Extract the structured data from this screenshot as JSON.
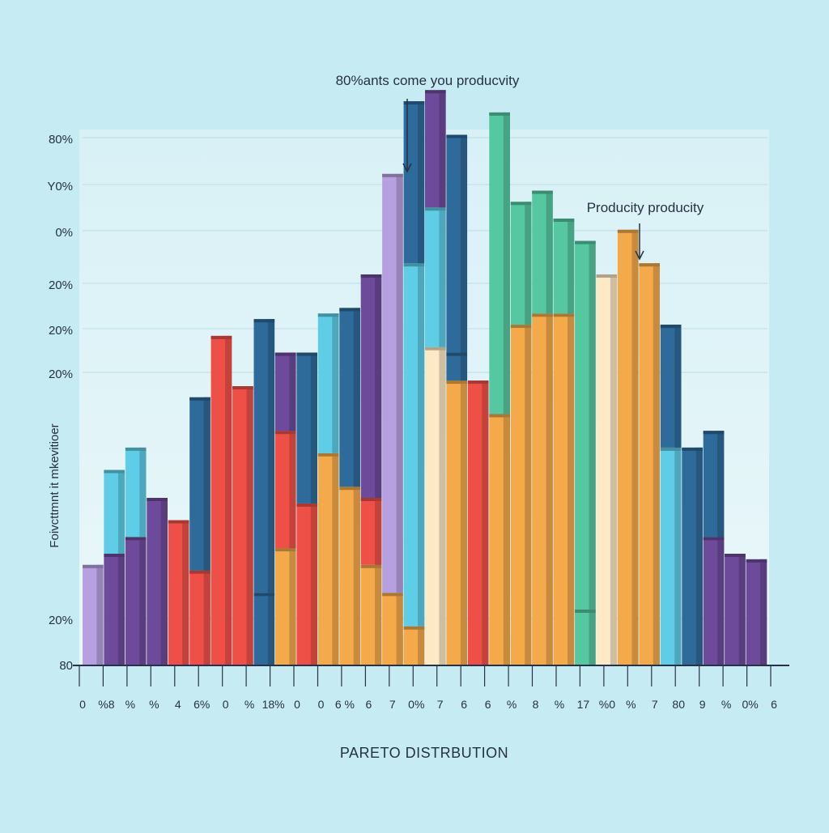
{
  "chart_data": {
    "type": "bar",
    "title": "PARETO DISTRBUTION",
    "ylabel": "Foivcttmnt it mkevitioer",
    "yticks": [
      "80%",
      "Y0%",
      "0%",
      "20%",
      "20%",
      "20%",
      "20%",
      "80"
    ],
    "xticks": [
      "0",
      "%8",
      "%",
      "%",
      "4",
      "6%",
      "0",
      "%",
      "18%",
      "0",
      "0",
      "6 %",
      "6",
      "7",
      "0%",
      "7",
      "6",
      "6",
      "%",
      "8",
      "%",
      "17",
      "%0",
      "%",
      "7",
      "80",
      "9",
      "%",
      "0%",
      "6"
    ],
    "annotations": [
      {
        "text": "80%ants come you producvity"
      },
      {
        "text": "Producity producity"
      }
    ],
    "colors": {
      "background": "#c6ebf2",
      "lavender": "#b7a0e0",
      "purple": "#6e4a9b",
      "cyan": "#5fcde6",
      "navy": "#2e6a9a",
      "red": "#ee5048",
      "orange": "#f4aa4a",
      "cream": "#fde9c5",
      "green": "#55c8a2",
      "blue": "#3a8fc4"
    },
    "series_note": "stacked colored bars, values read as fraction of plot height",
    "bars": [
      {
        "segments": [
          {
            "value": 0.18,
            "color": "lavender"
          }
        ]
      },
      {
        "segments": [
          {
            "value": 0.2,
            "color": "purple"
          },
          {
            "value": 0.15,
            "color": "cyan"
          }
        ]
      },
      {
        "segments": [
          {
            "value": 0.23,
            "color": "purple"
          },
          {
            "value": 0.16,
            "color": "cyan"
          }
        ]
      },
      {
        "segments": [
          {
            "value": 0.3,
            "color": "purple"
          }
        ]
      },
      {
        "segments": [
          {
            "value": 0.26,
            "color": "red"
          }
        ]
      },
      {
        "segments": [
          {
            "value": 0.17,
            "color": "red"
          },
          {
            "value": 0.31,
            "color": "navy"
          }
        ]
      },
      {
        "segments": [
          {
            "value": 0.59,
            "color": "red"
          }
        ]
      },
      {
        "segments": [
          {
            "value": 0.5,
            "color": "red"
          }
        ]
      },
      {
        "segments": [
          {
            "value": 0.13,
            "color": "navy"
          },
          {
            "value": 0.49,
            "color": "navy"
          }
        ]
      },
      {
        "segments": [
          {
            "value": 0.21,
            "color": "orange"
          },
          {
            "value": 0.21,
            "color": "red"
          },
          {
            "value": 0.14,
            "color": "purple"
          }
        ]
      },
      {
        "segments": [
          {
            "value": 0.29,
            "color": "red"
          },
          {
            "value": 0.27,
            "color": "navy"
          }
        ]
      },
      {
        "segments": [
          {
            "value": 0.38,
            "color": "orange"
          },
          {
            "value": 0.25,
            "color": "cyan"
          }
        ]
      },
      {
        "segments": [
          {
            "value": 0.32,
            "color": "orange"
          },
          {
            "value": 0.32,
            "color": "navy"
          }
        ]
      },
      {
        "segments": [
          {
            "value": 0.18,
            "color": "orange"
          },
          {
            "value": 0.12,
            "color": "red"
          },
          {
            "value": 0.4,
            "color": "purple"
          }
        ]
      },
      {
        "segments": [
          {
            "value": 0.13,
            "color": "orange"
          },
          {
            "value": 0.75,
            "color": "lavender"
          }
        ]
      },
      {
        "segments": [
          {
            "value": 0.07,
            "color": "orange"
          },
          {
            "value": 0.65,
            "color": "cyan"
          },
          {
            "value": 0.29,
            "color": "navy"
          }
        ]
      },
      {
        "segments": [
          {
            "value": 0.57,
            "color": "cream"
          },
          {
            "value": 0.25,
            "color": "cyan"
          },
          {
            "value": 0.21,
            "color": "purple"
          }
        ]
      },
      {
        "segments": [
          {
            "value": 0.51,
            "color": "orange"
          },
          {
            "value": 0.05,
            "color": "navy"
          },
          {
            "value": 0.39,
            "color": "navy"
          }
        ]
      },
      {
        "segments": [
          {
            "value": 0.51,
            "color": "red"
          }
        ]
      },
      {
        "segments": [
          {
            "value": 0.45,
            "color": "orange"
          },
          {
            "value": 0.54,
            "color": "green"
          }
        ]
      },
      {
        "segments": [
          {
            "value": 0.61,
            "color": "orange"
          },
          {
            "value": 0.22,
            "color": "green"
          }
        ]
      },
      {
        "segments": [
          {
            "value": 0.63,
            "color": "orange"
          },
          {
            "value": 0.22,
            "color": "green"
          }
        ]
      },
      {
        "segments": [
          {
            "value": 0.63,
            "color": "orange"
          },
          {
            "value": 0.17,
            "color": "green"
          }
        ]
      },
      {
        "segments": [
          {
            "value": 0.1,
            "color": "green"
          },
          {
            "value": 0.66,
            "color": "green"
          }
        ]
      },
      {
        "segments": [
          {
            "value": 0.7,
            "color": "cream"
          }
        ]
      },
      {
        "segments": [
          {
            "value": 0.78,
            "color": "orange"
          }
        ]
      },
      {
        "segments": [
          {
            "value": 0.72,
            "color": "orange"
          }
        ]
      },
      {
        "segments": [
          {
            "value": 0.39,
            "color": "cyan"
          },
          {
            "value": 0.22,
            "color": "navy"
          }
        ]
      },
      {
        "segments": [
          {
            "value": 0.39,
            "color": "navy"
          }
        ]
      },
      {
        "segments": [
          {
            "value": 0.23,
            "color": "purple"
          },
          {
            "value": 0.19,
            "color": "navy"
          }
        ]
      },
      {
        "segments": [
          {
            "value": 0.2,
            "color": "purple"
          }
        ]
      },
      {
        "segments": [
          {
            "value": 0.19,
            "color": "purple"
          }
        ]
      }
    ]
  }
}
